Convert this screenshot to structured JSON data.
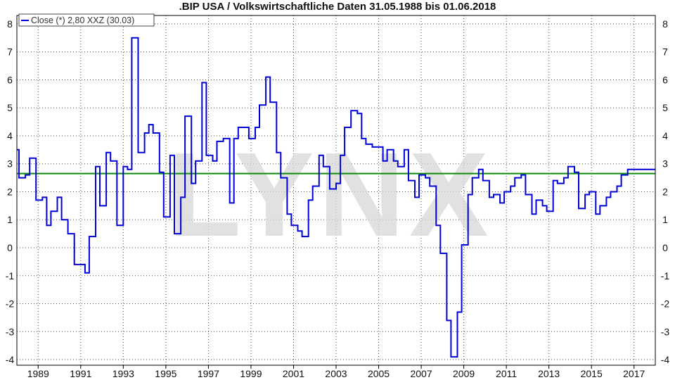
{
  "chart_data": {
    "type": "line",
    "title": ".BIP USA / Volkswirtschaftliche Daten 31.05.1988 bis 01.06.2018",
    "legend": "Close (*) 2,80 XXZ (30.03)",
    "watermark": "LYNX",
    "ylim": [
      -4.2,
      8.3
    ],
    "xlim": [
      1988.0,
      2018.0
    ],
    "y_ticks": [
      "8",
      "7",
      "6",
      "5",
      "4",
      "3",
      "2",
      "1",
      "0",
      "-1",
      "-2",
      "-3",
      "-4"
    ],
    "x_ticks": [
      "1989",
      "1991",
      "1993",
      "1995",
      "1997",
      "1999",
      "2001",
      "2003",
      "2005",
      "2007",
      "2009",
      "2011",
      "2013",
      "2015",
      "2017"
    ],
    "grid": true,
    "legend_position": "top-left",
    "colors": {
      "series": "#0000d8",
      "reference": "#0b8a0b"
    },
    "reference_line": {
      "label": "",
      "value": 2.65
    },
    "series": [
      {
        "step": true,
        "x": [
          1988.0,
          1988.1,
          1988.4,
          1988.6,
          1988.9,
          1989.2,
          1989.4,
          1989.6,
          1989.9,
          1990.1,
          1990.4,
          1990.7,
          1990.9,
          1991.2,
          1991.4,
          1991.7,
          1991.9,
          1992.2,
          1992.4,
          1992.7,
          1993.0,
          1993.2,
          1993.4,
          1993.7,
          1994.0,
          1994.2,
          1994.4,
          1994.7,
          1994.9,
          1995.2,
          1995.4,
          1995.7,
          1995.9,
          1996.2,
          1996.4,
          1996.7,
          1996.9,
          1997.2,
          1997.4,
          1997.7,
          1998.0,
          1998.2,
          1998.4,
          1998.7,
          1998.9,
          1999.2,
          1999.4,
          1999.7,
          1999.9,
          2000.2,
          2000.4,
          2000.7,
          2000.9,
          2001.2,
          2001.4,
          2001.7,
          2001.9,
          2002.2,
          2002.4,
          2002.7,
          2003.0,
          2003.2,
          2003.4,
          2003.7,
          2004.0,
          2004.2,
          2004.4,
          2004.7,
          2004.9,
          2005.2,
          2005.4,
          2005.7,
          2005.9,
          2006.2,
          2006.4,
          2006.7,
          2006.9,
          2007.2,
          2007.4,
          2007.7,
          2007.9,
          2008.2,
          2008.4,
          2008.7,
          2008.9,
          2009.2,
          2009.4,
          2009.7,
          2009.9,
          2010.2,
          2010.4,
          2010.7,
          2010.9,
          2011.2,
          2011.4,
          2011.7,
          2011.9,
          2012.2,
          2012.4,
          2012.7,
          2012.9,
          2013.2,
          2013.4,
          2013.7,
          2013.9,
          2014.2,
          2014.4,
          2014.7,
          2014.9,
          2015.2,
          2015.4,
          2015.7,
          2015.9,
          2016.2,
          2016.4,
          2016.7,
          2016.9,
          2017.2,
          2017.4,
          2017.7,
          2017.9,
          2018.0
        ],
        "y": [
          3.5,
          2.5,
          2.6,
          3.2,
          1.7,
          1.8,
          0.8,
          1.3,
          1.8,
          1.0,
          0.5,
          -0.6,
          -0.6,
          -0.9,
          0.4,
          2.9,
          1.5,
          3.4,
          3.1,
          0.8,
          2.9,
          2.8,
          7.5,
          3.4,
          4.1,
          4.4,
          4.1,
          2.7,
          1.1,
          3.3,
          0.5,
          1.8,
          4.7,
          2.3,
          3.1,
          5.9,
          3.3,
          3.1,
          3.8,
          3.9,
          1.6,
          3.9,
          4.3,
          4.3,
          3.9,
          4.3,
          5.1,
          6.1,
          5.2,
          3.4,
          2.5,
          1.2,
          0.8,
          0.6,
          0.4,
          1.7,
          2.2,
          3.3,
          2.9,
          2.1,
          2.3,
          3.3,
          4.3,
          4.9,
          4.8,
          3.9,
          3.7,
          3.6,
          3.6,
          3.1,
          3.5,
          3.1,
          2.9,
          3.5,
          2.4,
          1.8,
          2.6,
          2.5,
          2.2,
          0.8,
          -0.2,
          -2.6,
          -3.9,
          -2.3,
          0.1,
          1.9,
          2.5,
          2.8,
          2.4,
          1.8,
          1.9,
          1.6,
          2.0,
          2.2,
          2.5,
          2.6,
          1.9,
          1.2,
          1.7,
          1.5,
          1.3,
          2.4,
          2.3,
          2.5,
          2.9,
          2.7,
          1.4,
          1.9,
          2.0,
          1.2,
          1.5,
          1.8,
          2.0,
          2.2,
          2.6,
          2.8,
          2.8,
          2.8,
          2.8,
          2.8,
          2.8,
          2.8
        ]
      }
    ]
  }
}
